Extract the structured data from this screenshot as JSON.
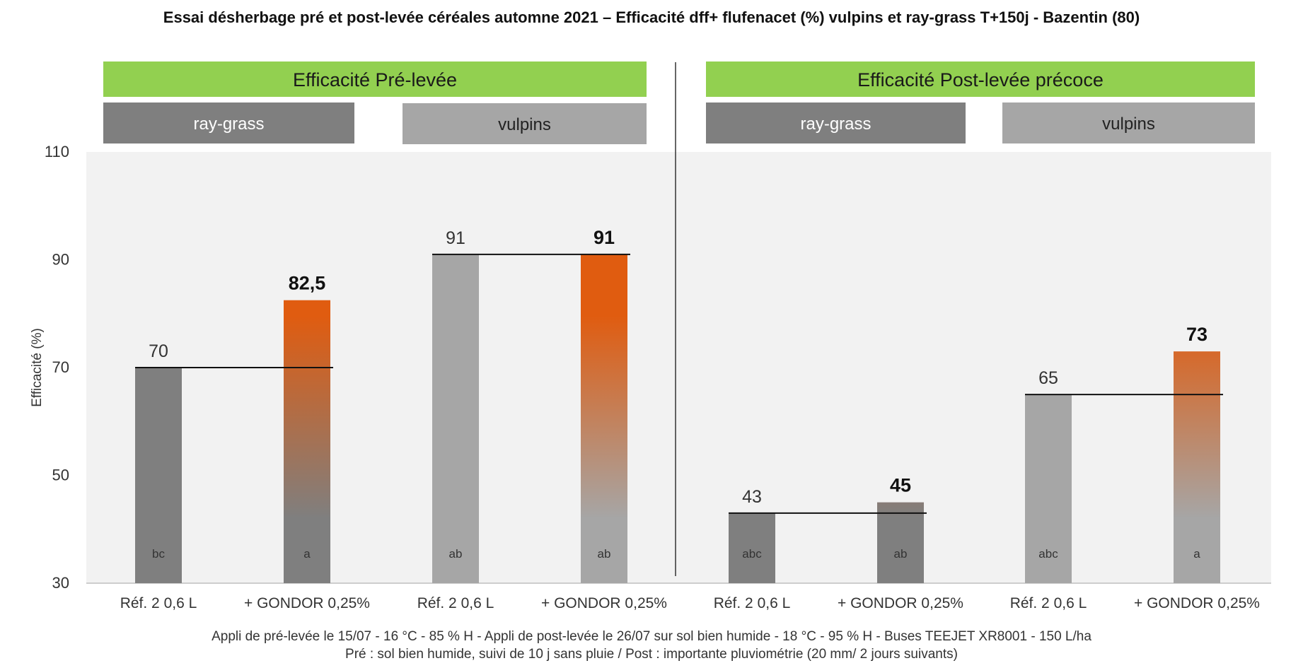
{
  "title": "Essai désherbage pré et post-levée céréales automne 2021 – Efficacité dff+ flufenacet (%) vulpins et ray-grass T+150j - Bazentin (80)",
  "colors": {
    "banner": "#92d050",
    "group_dark": "#7f7f7f",
    "group_light": "#a6a6a6",
    "bar_dark": "#7f7f7f",
    "bar_light": "#a6a6a6",
    "bar_accent": "#e05c10",
    "plot_bg": "#f2f2f2"
  },
  "footnotes": [
    "Appli de pré-levée le 15/07 - 16 °C - 85 % H - Appli de post-levée le 26/07 sur sol bien humide - 18 °C - 95 % H  - Buses TEEJET XR8001 - 150 L/ha",
    "Pré : sol bien humide, suivi de 10 j sans pluie / Post : importante pluviométrie (20 mm/ 2 jours suivants)"
  ],
  "chart_data": {
    "type": "bar",
    "ylabel": "Efficacité (%)",
    "xlabel": "",
    "ylim": [
      30,
      110
    ],
    "yticks": [
      30,
      50,
      70,
      90,
      110
    ],
    "grid": false,
    "panels": [
      {
        "label": "Efficacité Pré-levée",
        "groups": [
          {
            "label": "ray-grass",
            "shade": "dark",
            "bars": [
              {
                "category": "Réf. 2  0,6 L",
                "value": 70,
                "label": "70",
                "letter": "bc",
                "style": "plain"
              },
              {
                "category": "+ GONDOR 0,25%",
                "value": 82.5,
                "label": "82,5",
                "letter": "a",
                "style": "accent"
              }
            ]
          },
          {
            "label": "vulpins",
            "shade": "light",
            "bars": [
              {
                "category": "Réf. 2  0,6 L",
                "value": 91,
                "label": "91",
                "letter": "ab",
                "style": "plain"
              },
              {
                "category": "+ GONDOR  0,25%",
                "value": 91,
                "label": "91",
                "letter": "ab",
                "style": "accent"
              }
            ]
          }
        ]
      },
      {
        "label": "Efficacité Post-levée précoce",
        "groups": [
          {
            "label": "ray-grass",
            "shade": "dark",
            "bars": [
              {
                "category": "Réf. 2  0,6 L",
                "value": 43,
                "label": "43",
                "letter": "abc",
                "style": "plain"
              },
              {
                "category": "+ GONDOR  0,25%",
                "value": 45,
                "label": "45",
                "letter": "ab",
                "style": "accent"
              }
            ]
          },
          {
            "label": "vulpins",
            "shade": "light",
            "bars": [
              {
                "category": "Réf. 2  0,6 L",
                "value": 65,
                "label": "65",
                "letter": "abc",
                "style": "plain"
              },
              {
                "category": "+ GONDOR  0,25%",
                "value": 73,
                "label": "73",
                "letter": "a",
                "style": "accent"
              }
            ]
          }
        ]
      }
    ]
  }
}
